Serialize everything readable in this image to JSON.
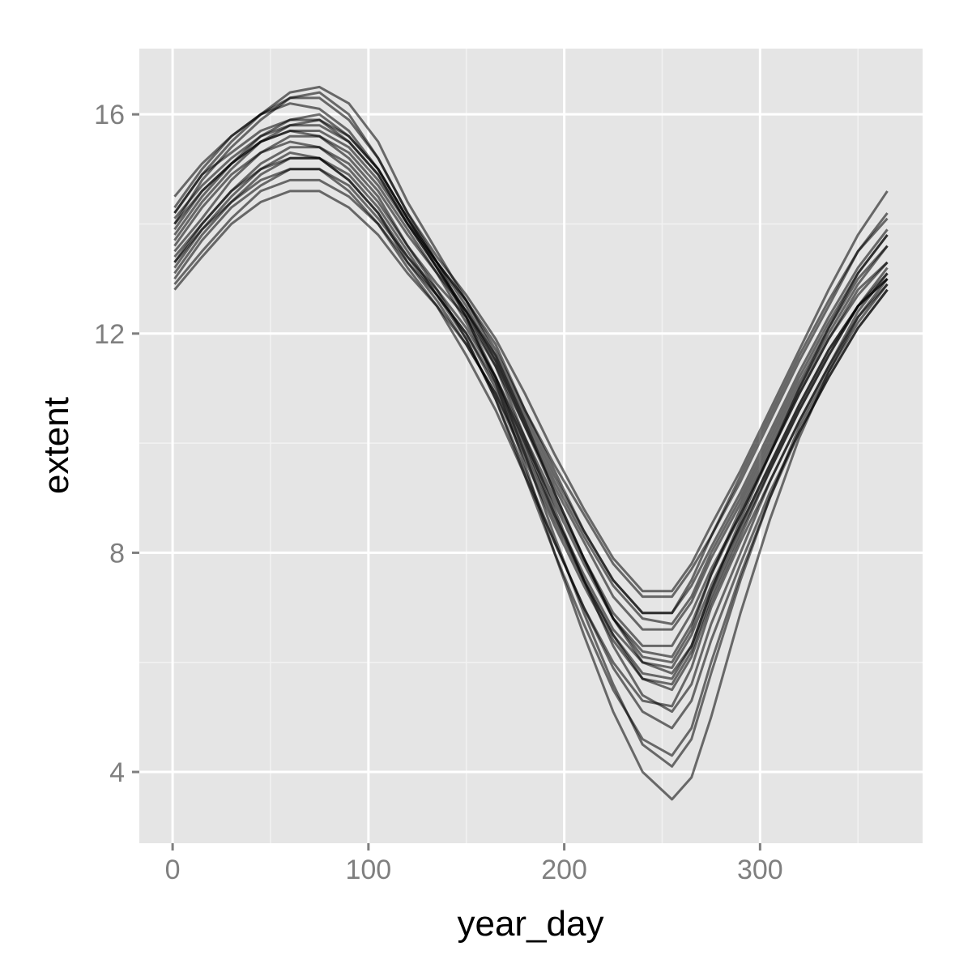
{
  "chart_data": {
    "type": "line",
    "title": "",
    "xlabel": "year_day",
    "ylabel": "extent",
    "xlim": [
      -17,
      383
    ],
    "ylim": [
      2.7,
      17.2
    ],
    "x_ticks": [
      0,
      100,
      200,
      300
    ],
    "x_tick_labels": [
      "0",
      "100",
      "200",
      "300"
    ],
    "y_ticks": [
      4,
      8,
      12,
      16
    ],
    "y_tick_labels": [
      "4",
      "8",
      "12",
      "16"
    ],
    "x_minor_ticks": [
      50,
      150,
      250,
      350
    ],
    "y_minor_ticks": [
      6,
      10,
      14
    ],
    "grid": true,
    "legend": "none",
    "colors": {
      "panel_background": "#e5e5e5",
      "grid_major": "#ffffff",
      "grid_minor": "#f2f2f2",
      "line": "#000000",
      "line_opacity": 0.55
    },
    "x": [
      1,
      15,
      30,
      45,
      60,
      75,
      90,
      105,
      120,
      135,
      150,
      165,
      180,
      195,
      210,
      225,
      240,
      255,
      265,
      275,
      290,
      305,
      320,
      335,
      350,
      365
    ],
    "series": [
      {
        "values": [
          14.2,
          14.9,
          15.3,
          15.7,
          15.9,
          15.9,
          15.5,
          14.9,
          14.0,
          13.3,
          12.6,
          11.8,
          10.6,
          9.6,
          8.7,
          7.8,
          7.2,
          7.2,
          7.7,
          8.3,
          9.3,
          10.4,
          11.5,
          12.5,
          13.5,
          14.2
        ]
      },
      {
        "values": [
          13.9,
          14.6,
          15.1,
          15.5,
          15.7,
          15.6,
          15.2,
          14.6,
          13.8,
          13.1,
          12.4,
          11.6,
          10.5,
          9.4,
          8.4,
          7.5,
          6.9,
          6.9,
          7.4,
          8.1,
          9.1,
          10.2,
          11.3,
          12.3,
          13.2,
          13.9
        ]
      },
      {
        "values": [
          13.6,
          14.3,
          14.9,
          15.3,
          15.5,
          15.4,
          15.0,
          14.4,
          13.6,
          12.9,
          12.3,
          11.4,
          10.3,
          9.2,
          8.2,
          7.2,
          6.6,
          6.6,
          7.1,
          7.9,
          8.9,
          10.0,
          11.1,
          12.1,
          13.0,
          13.6
        ]
      },
      {
        "values": [
          13.2,
          13.9,
          14.5,
          15.0,
          15.3,
          15.2,
          14.8,
          14.2,
          13.4,
          12.8,
          12.1,
          11.2,
          10.1,
          9.0,
          7.9,
          6.9,
          6.3,
          6.3,
          6.9,
          7.7,
          8.7,
          9.8,
          10.9,
          11.9,
          12.8,
          13.3
        ]
      },
      {
        "values": [
          12.9,
          13.5,
          14.1,
          14.6,
          14.8,
          14.8,
          14.5,
          14.0,
          13.3,
          12.7,
          12.0,
          11.0,
          9.9,
          8.7,
          7.6,
          6.6,
          6.0,
          5.9,
          6.5,
          7.4,
          8.5,
          9.6,
          10.7,
          11.7,
          12.5,
          13.0
        ]
      },
      {
        "values": [
          14.0,
          14.8,
          15.4,
          15.9,
          16.3,
          16.4,
          16.0,
          15.2,
          14.2,
          13.4,
          12.7,
          11.9,
          10.9,
          9.8,
          8.8,
          7.9,
          7.3,
          7.3,
          7.8,
          8.5,
          9.5,
          10.6,
          11.7,
          12.8,
          13.8,
          14.6
        ]
      },
      {
        "values": [
          13.4,
          14.0,
          14.6,
          15.0,
          15.2,
          15.2,
          14.8,
          14.2,
          13.3,
          12.6,
          11.8,
          10.9,
          9.7,
          8.5,
          7.4,
          6.4,
          5.7,
          5.6,
          6.2,
          7.2,
          8.4,
          9.5,
          10.6,
          11.6,
          12.5,
          13.1
        ]
      },
      {
        "values": [
          13.0,
          13.7,
          14.3,
          14.7,
          15.0,
          15.0,
          14.6,
          14.0,
          13.2,
          12.5,
          11.6,
          10.6,
          9.4,
          8.2,
          7.0,
          6.0,
          5.3,
          5.2,
          5.9,
          7.0,
          8.2,
          9.3,
          10.4,
          11.4,
          12.3,
          12.9
        ]
      },
      {
        "values": [
          13.8,
          14.5,
          15.1,
          15.6,
          15.9,
          16.0,
          15.6,
          15.0,
          14.1,
          13.3,
          12.5,
          11.5,
          10.3,
          9.1,
          7.9,
          6.8,
          6.1,
          6.0,
          6.6,
          7.6,
          8.8,
          9.9,
          11.0,
          12.0,
          12.9,
          13.6
        ]
      },
      {
        "values": [
          13.5,
          14.1,
          14.8,
          15.3,
          15.6,
          15.6,
          15.3,
          14.7,
          13.9,
          13.1,
          12.2,
          11.2,
          10.0,
          8.7,
          7.5,
          6.5,
          5.7,
          5.5,
          6.1,
          7.1,
          8.3,
          9.5,
          10.6,
          11.6,
          12.5,
          13.2
        ]
      },
      {
        "values": [
          13.1,
          13.8,
          14.4,
          14.9,
          15.2,
          15.2,
          14.9,
          14.3,
          13.5,
          12.7,
          11.9,
          10.8,
          9.5,
          8.2,
          7.0,
          5.9,
          5.1,
          4.8,
          5.3,
          6.4,
          7.8,
          9.1,
          10.2,
          11.2,
          12.1,
          12.8
        ]
      },
      {
        "values": [
          14.1,
          14.7,
          15.2,
          15.6,
          15.8,
          15.8,
          15.5,
          14.9,
          14.0,
          13.2,
          12.4,
          11.4,
          10.1,
          8.8,
          7.5,
          6.3,
          5.4,
          5.1,
          5.6,
          6.7,
          8.0,
          9.3,
          10.4,
          11.4,
          12.4,
          13.1
        ]
      },
      {
        "values": [
          13.3,
          14.0,
          14.6,
          15.1,
          15.4,
          15.4,
          15.1,
          14.5,
          13.6,
          12.8,
          11.9,
          10.8,
          9.4,
          8.0,
          6.7,
          5.5,
          4.6,
          4.3,
          4.8,
          6.0,
          7.6,
          9.0,
          10.2,
          11.2,
          12.1,
          12.8
        ]
      },
      {
        "values": [
          13.7,
          14.4,
          15.0,
          15.5,
          15.8,
          15.9,
          15.6,
          15.0,
          14.1,
          13.2,
          12.3,
          11.2,
          9.8,
          8.3,
          6.9,
          5.6,
          4.5,
          4.1,
          4.6,
          5.8,
          7.5,
          9.0,
          10.3,
          11.3,
          12.2,
          12.9
        ]
      },
      {
        "values": [
          14.3,
          15.0,
          15.6,
          16.0,
          16.3,
          16.3,
          15.9,
          15.2,
          14.2,
          13.3,
          12.3,
          11.1,
          9.6,
          8.0,
          6.5,
          5.1,
          4.0,
          3.5,
          3.9,
          5.0,
          6.9,
          8.6,
          10.1,
          11.3,
          12.3,
          13.0
        ]
      },
      {
        "values": [
          14.0,
          14.6,
          15.1,
          15.5,
          15.7,
          15.7,
          15.4,
          14.8,
          14.0,
          13.2,
          12.4,
          11.5,
          10.4,
          9.3,
          8.3,
          7.4,
          6.8,
          6.7,
          7.2,
          8.0,
          9.0,
          10.1,
          11.2,
          12.2,
          13.1,
          13.8
        ]
      },
      {
        "values": [
          13.3,
          13.9,
          14.4,
          14.8,
          15.0,
          15.0,
          14.7,
          14.1,
          13.4,
          12.7,
          12.0,
          11.1,
          10.0,
          8.9,
          7.8,
          6.8,
          6.2,
          6.1,
          6.7,
          7.6,
          8.7,
          9.8,
          10.9,
          11.9,
          12.7,
          13.3
        ]
      },
      {
        "values": [
          14.5,
          15.1,
          15.6,
          16.0,
          16.2,
          16.1,
          15.7,
          15.0,
          14.1,
          13.3,
          12.6,
          11.7,
          10.6,
          9.5,
          8.4,
          7.5,
          6.9,
          6.9,
          7.5,
          8.3,
          9.4,
          10.5,
          11.6,
          12.6,
          13.5,
          14.1
        ]
      },
      {
        "values": [
          12.8,
          13.4,
          14.0,
          14.4,
          14.6,
          14.6,
          14.3,
          13.8,
          13.1,
          12.5,
          11.8,
          10.9,
          9.8,
          8.6,
          7.5,
          6.5,
          5.8,
          5.7,
          6.3,
          7.3,
          8.5,
          9.6,
          10.7,
          11.7,
          12.5,
          13.0
        ]
      },
      {
        "values": [
          14.2,
          14.9,
          15.5,
          16.0,
          16.4,
          16.5,
          16.2,
          15.5,
          14.4,
          13.5,
          12.6,
          11.6,
          10.4,
          9.1,
          7.9,
          6.8,
          6.0,
          5.8,
          6.3,
          7.3,
          8.6,
          9.8,
          11.0,
          12.1,
          13.1,
          13.8
        ]
      }
    ]
  }
}
